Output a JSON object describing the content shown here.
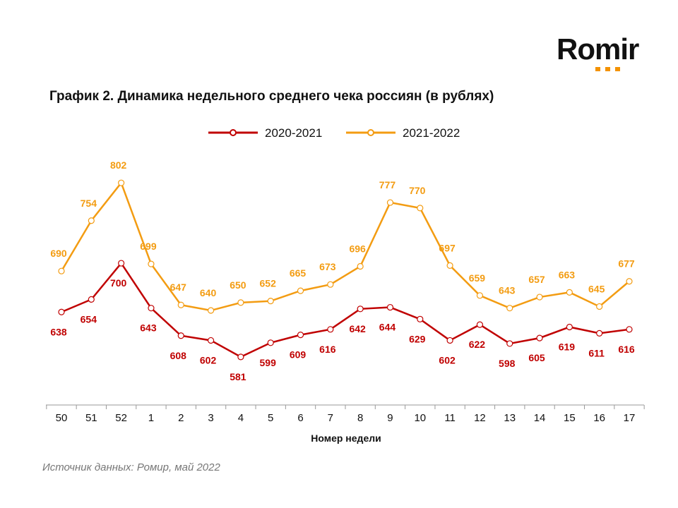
{
  "logo": {
    "text": "Romir",
    "dots_color": "#f39200"
  },
  "title": "График 2. Динамика недельного среднего чека россиян (в рублях)",
  "source": "Источник данных: Ромир, май 2022",
  "chart_data": {
    "type": "line",
    "title": "График 2. Динамика недельного среднего чека россиян (в рублях)",
    "xlabel": "Номер недели",
    "ylabel": "",
    "categories": [
      "50",
      "51",
      "52",
      "1",
      "2",
      "3",
      "4",
      "5",
      "6",
      "7",
      "8",
      "9",
      "10",
      "11",
      "12",
      "13",
      "14",
      "15",
      "16",
      "17"
    ],
    "ylim": [
      520,
      855
    ],
    "grid": false,
    "legend": "top-center",
    "series": [
      {
        "name": "2020-2021",
        "color": "#c00000",
        "label_pos": "below",
        "values": [
          638,
          654,
          700,
          643,
          608,
          602,
          581,
          599,
          609,
          616,
          642,
          644,
          629,
          602,
          622,
          598,
          605,
          619,
          611,
          616
        ]
      },
      {
        "name": "2021-2022",
        "color": "#f39c12",
        "label_pos": "above",
        "values": [
          690,
          754,
          802,
          699,
          647,
          640,
          650,
          652,
          665,
          673,
          696,
          777,
          770,
          697,
          659,
          643,
          657,
          663,
          645,
          677
        ]
      }
    ]
  }
}
